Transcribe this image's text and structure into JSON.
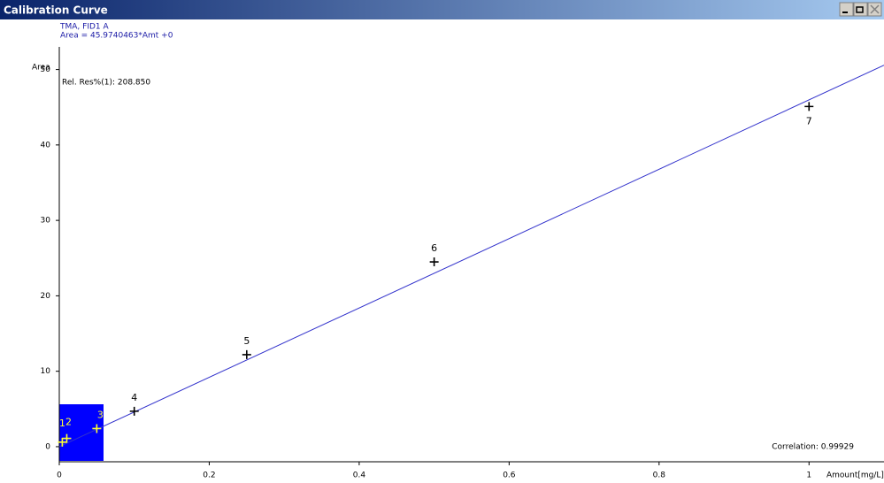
{
  "window": {
    "title": "Calibration Curve"
  },
  "chart_data": {
    "type": "scatter",
    "subtitle": "TMA, FID1 A",
    "equation": "Area = 45.9740463*Amt +0",
    "y_label": "Area",
    "x_label": "Amount[mg/L]",
    "residual": "Rel. Res%(1): 208.850",
    "correlation": "Correlation: 0.99929",
    "x": [
      0.004,
      0.01,
      0.05,
      0.1,
      0.25,
      0.5,
      1
    ],
    "values": [
      0.6,
      1.1,
      2.4,
      4.7,
      12.2,
      24.5,
      45.1
    ],
    "point_labels": [
      "1",
      "2",
      "3",
      "4",
      "5",
      "6",
      "7"
    ],
    "point_colors": [
      "#ffff33",
      "#ffff33",
      "#ffff33",
      "#000000",
      "#000000",
      "#000000",
      "#000000"
    ],
    "fit": {
      "slope": 45.9740463,
      "intercept": 0,
      "color": "#3333cc"
    },
    "xlim": [
      0,
      1.1
    ],
    "ylim": [
      -2,
      53
    ],
    "xticks": [
      0,
      0.2,
      0.4,
      0.6,
      0.8,
      1
    ],
    "yticks": [
      0,
      10,
      20,
      30,
      40,
      50
    ]
  }
}
